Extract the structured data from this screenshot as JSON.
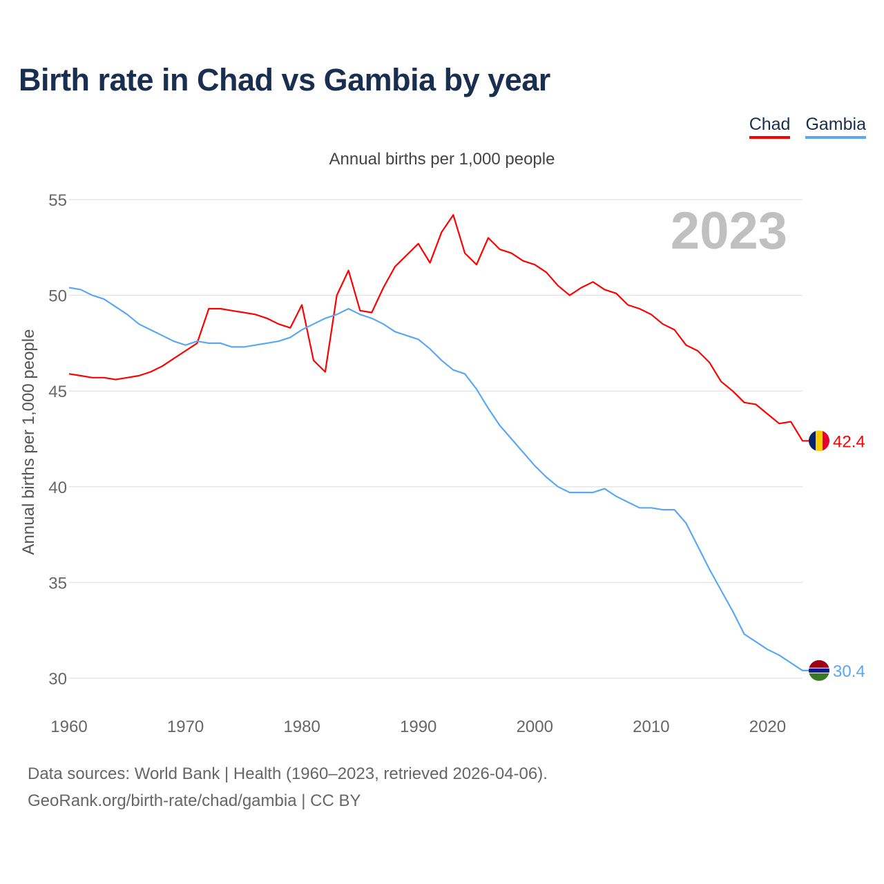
{
  "chart_data": {
    "type": "line",
    "title": "Birth rate in Chad vs Gambia by year",
    "subtitle": "Annual births per 1,000 people",
    "ylabel": "Annual births per 1,000 people",
    "xlabel": "",
    "year_label": "2023",
    "ylim": [
      30,
      55
    ],
    "xlim": [
      1960,
      2023
    ],
    "yticks": [
      "30",
      "35",
      "40",
      "45",
      "50",
      "55"
    ],
    "xticks": [
      "1960",
      "1970",
      "1980",
      "1990",
      "2000",
      "2010",
      "2020"
    ],
    "grid": true,
    "legend_position": "top-right",
    "x_start": 1960,
    "series": [
      {
        "name": "Chad",
        "color": "#ff0000",
        "end_label": "42.4",
        "values": [
          45.9,
          45.8,
          45.7,
          45.7,
          45.6,
          45.7,
          45.8,
          46.0,
          46.3,
          46.7,
          47.1,
          47.5,
          49.3,
          49.3,
          49.2,
          49.1,
          49.0,
          48.8,
          48.5,
          48.3,
          49.5,
          46.6,
          46.0,
          50.0,
          51.3,
          49.2,
          49.1,
          50.4,
          51.5,
          52.1,
          52.7,
          51.7,
          53.3,
          54.2,
          52.2,
          51.6,
          53.0,
          52.4,
          52.2,
          51.8,
          51.6,
          51.2,
          50.5,
          50.0,
          50.4,
          50.7,
          50.3,
          50.1,
          49.5,
          49.3,
          49.0,
          48.5,
          48.2,
          47.4,
          47.1,
          46.5,
          45.5,
          45.0,
          44.4,
          44.3,
          43.8,
          43.3,
          43.4,
          42.4
        ]
      },
      {
        "name": "Gambia",
        "color": "#5ba7f0",
        "end_label": "30.4",
        "values": [
          50.4,
          50.3,
          50.0,
          49.8,
          49.4,
          49.0,
          48.5,
          48.2,
          47.9,
          47.6,
          47.4,
          47.6,
          47.5,
          47.5,
          47.3,
          47.3,
          47.4,
          47.5,
          47.6,
          47.8,
          48.2,
          48.5,
          48.8,
          49.0,
          49.3,
          49.0,
          48.8,
          48.5,
          48.1,
          47.9,
          47.7,
          47.2,
          46.6,
          46.1,
          45.9,
          45.1,
          44.1,
          43.2,
          42.5,
          41.8,
          41.1,
          40.5,
          40.0,
          39.7,
          39.7,
          39.7,
          39.9,
          39.5,
          39.2,
          38.9,
          38.9,
          38.8,
          38.8,
          38.1,
          36.9,
          35.7,
          34.6,
          33.5,
          32.3,
          31.9,
          31.5,
          31.2,
          30.8,
          30.4
        ]
      }
    ]
  },
  "footer": {
    "line1": "Data sources: World Bank | Health (1960–2023, retrieved 2026-04-06).",
    "line2": "GeoRank.org/birth-rate/chad/gambia | CC BY"
  }
}
